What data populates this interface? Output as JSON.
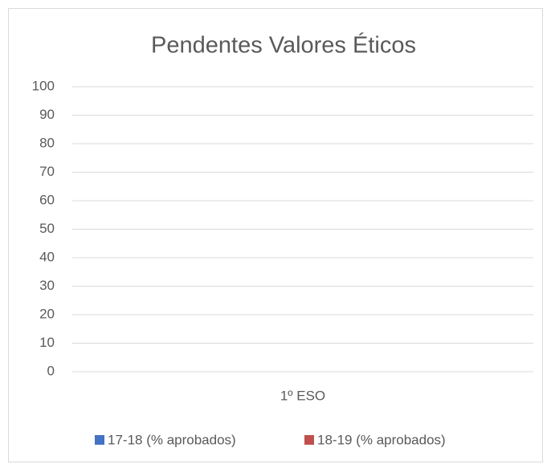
{
  "chart_data": {
    "type": "bar",
    "title": "Pendentes Valores Éticos",
    "categories": [
      "1º ESO"
    ],
    "series": [
      {
        "name": "17-18 (% aprobados)",
        "color": "#4472c4",
        "values": [
          0
        ]
      },
      {
        "name": "18-19 (% aprobados)",
        "color": "#c0504d",
        "values": [
          0
        ]
      }
    ],
    "ylim": [
      0,
      100
    ],
    "yticks": [
      0,
      10,
      20,
      30,
      40,
      50,
      60,
      70,
      80,
      90,
      100
    ],
    "grid": true,
    "legend": "bottom"
  }
}
